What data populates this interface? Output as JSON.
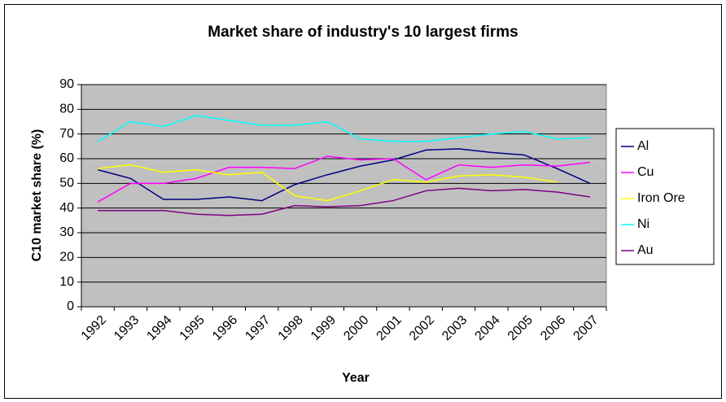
{
  "chart_data": {
    "type": "line",
    "title": "Market share of industry's 10 largest firms",
    "x_label": "Year",
    "y_label": "C10 market share (%)",
    "categories": [
      "1992",
      "1993",
      "1994",
      "1995",
      "1996",
      "1997",
      "1998",
      "1999",
      "2000",
      "2001",
      "2002",
      "2003",
      "2004",
      "2005",
      "2006",
      "2007"
    ],
    "series": [
      {
        "name": "Al",
        "color": "#000080",
        "values": [
          55.5,
          52,
          43.5,
          43.5,
          44.5,
          43,
          49.5,
          53.5,
          57,
          59.5,
          63.5,
          64,
          62.5,
          61.5,
          56,
          50
        ]
      },
      {
        "name": "Cu",
        "color": "#ff00ff",
        "values": [
          42.5,
          50,
          50,
          52,
          56.5,
          56.5,
          56,
          61,
          59.5,
          60,
          51.5,
          57.5,
          56.5,
          57.5,
          57,
          58.5
        ]
      },
      {
        "name": "Iron Ore",
        "color": "#ffff00",
        "values": [
          56,
          57.5,
          54.5,
          55.5,
          53.5,
          54.5,
          45,
          43,
          47,
          51.5,
          50.5,
          53,
          53.5,
          52.5,
          50.5,
          null
        ]
      },
      {
        "name": "Ni",
        "color": "#00ffff",
        "values": [
          67,
          75,
          73,
          77.5,
          75.5,
          73.5,
          73.5,
          75,
          68,
          67,
          67,
          68.5,
          70,
          71,
          68,
          68.5
        ]
      },
      {
        "name": "Au",
        "color": "#800080",
        "values": [
          39,
          39,
          39,
          37.5,
          37,
          37.5,
          41,
          40.5,
          41,
          43,
          47,
          48,
          47,
          47.5,
          46.5,
          44.5
        ]
      }
    ],
    "ylim": [
      0,
      90
    ],
    "yticks": [
      0,
      10,
      20,
      30,
      40,
      50,
      60,
      70,
      80,
      90
    ],
    "grid": true,
    "plot_background": "#c0c0c0",
    "legend": "right"
  }
}
